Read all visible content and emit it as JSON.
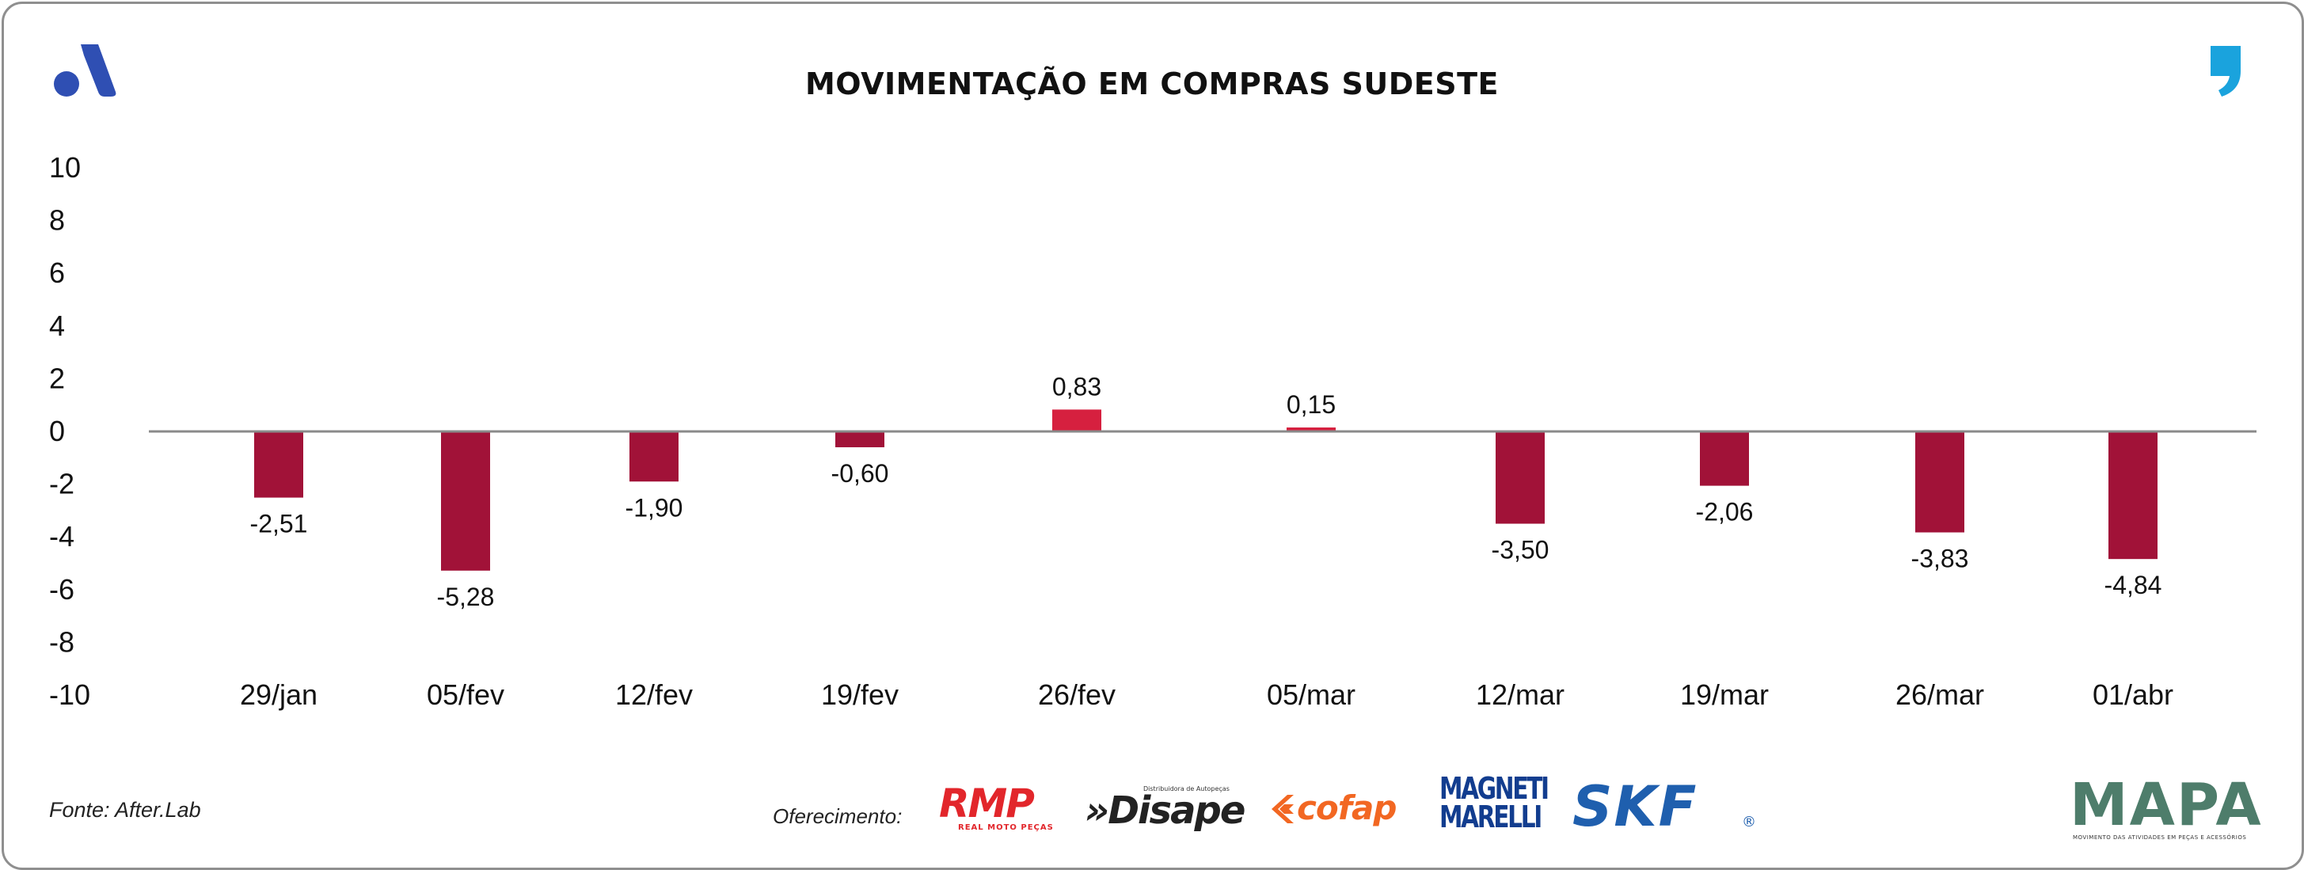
{
  "header": {
    "title": "MOVIMENTAÇÃO EM COMPRAS SUDESTE"
  },
  "chart_data": {
    "type": "bar",
    "title": "MOVIMENTAÇÃO EM COMPRAS SUDESTE",
    "xlabel": "",
    "ylabel": "",
    "categories": [
      "29/jan",
      "05/fev",
      "12/fev",
      "19/fev",
      "26/fev",
      "05/mar",
      "12/mar",
      "19/mar",
      "26/mar",
      "01/abr"
    ],
    "values": [
      -2.51,
      -5.28,
      -1.9,
      -0.6,
      0.83,
      0.15,
      -3.5,
      -2.06,
      -3.83,
      -4.84
    ],
    "value_labels": [
      "-2,51",
      "-5,28",
      "-1,90",
      "-0,60",
      "0,83",
      "0,15",
      "-3,50",
      "-2,06",
      "-3,83",
      "-4,84"
    ],
    "ylim": [
      -10,
      10
    ],
    "yticks": [
      10,
      8,
      6,
      4,
      2,
      0,
      -2,
      -4,
      -6,
      -8,
      -10
    ],
    "grid": false,
    "colors": {
      "negative": "#a11238",
      "positive": "#d6203f",
      "zero_line": "#8a8a8a"
    }
  },
  "footer": {
    "source": "Fonte: After.Lab",
    "sponsor_label": "Oferecimento:"
  },
  "logos": {
    "brand_icon": "a-icon",
    "quote_icon": "quote-icon",
    "rmp": {
      "text": "RMP",
      "subtext": "REAL MOTO PEÇAS",
      "color": "#e2262b"
    },
    "disape": {
      "text": "»Disape",
      "subtext": "Distribuidora de Autopeças",
      "color": "#222222"
    },
    "cofap": {
      "text": "cofap",
      "color": "#f26722"
    },
    "magneti_marelli": {
      "line1": "MAGNETI",
      "line2": "MARELLI",
      "color": "#123d8f"
    },
    "skf": {
      "text": "SKF",
      "reg": "®",
      "color": "#1f5fae"
    },
    "mapa": {
      "text": "MAPA",
      "subtext": "MOVIMENTO DAS ATIVIDADES EM PEÇAS E ACESSÓRIOS"
    }
  }
}
